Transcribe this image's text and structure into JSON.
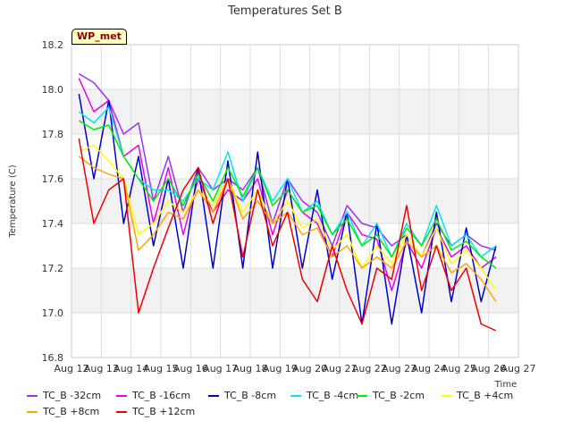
{
  "chart_data": {
    "type": "line",
    "title": "Temperatures Set B",
    "xlabel": "Time",
    "ylabel": "Temperature (C)",
    "badge": "WP_met",
    "x_ticks": [
      "Aug 12",
      "Aug 13",
      "Aug 14",
      "Aug 15",
      "Aug 16",
      "Aug 17",
      "Aug 18",
      "Aug 19",
      "Aug 20",
      "Aug 21",
      "Aug 22",
      "Aug 23",
      "Aug 24",
      "Aug 25",
      "Aug 26",
      "Aug 27"
    ],
    "y_ticks": [
      "16.8",
      "17.0",
      "17.2",
      "17.4",
      "17.6",
      "17.8",
      "18.0",
      "18.2"
    ],
    "xlim": [
      "Aug 12",
      "Aug 27"
    ],
    "ylim": [
      16.8,
      18.2
    ],
    "grid": true,
    "legend_position": "bottom",
    "series": [
      {
        "name": "TC_B -32cm",
        "color": "#9b30ff",
        "x": [
          "Aug 12 06:00",
          "Aug 12 18:00",
          "Aug 13 06:00",
          "Aug 13 18:00",
          "Aug 14 06:00",
          "Aug 14 18:00",
          "Aug 15 06:00",
          "Aug 15 18:00",
          "Aug 16 06:00",
          "Aug 16 18:00",
          "Aug 17 06:00",
          "Aug 17 18:00",
          "Aug 18 06:00",
          "Aug 18 18:00",
          "Aug 19 06:00",
          "Aug 19 18:00",
          "Aug 20 06:00",
          "Aug 20 18:00",
          "Aug 21 06:00",
          "Aug 21 18:00",
          "Aug 22 06:00",
          "Aug 22 18:00",
          "Aug 23 06:00",
          "Aug 23 18:00",
          "Aug 24 06:00",
          "Aug 24 18:00",
          "Aug 25 06:00",
          "Aug 25 18:00",
          "Aug 26 06:00"
        ],
        "y": [
          18.07,
          18.03,
          17.95,
          17.8,
          17.85,
          17.5,
          17.7,
          17.45,
          17.65,
          17.55,
          17.6,
          17.55,
          17.65,
          17.4,
          17.6,
          17.5,
          17.45,
          17.3,
          17.48,
          17.4,
          17.38,
          17.3,
          17.35,
          17.25,
          17.4,
          17.3,
          17.35,
          17.3,
          17.28
        ]
      },
      {
        "name": "TC_B -16cm",
        "color": "#ee00ee",
        "x": [
          "Aug 12 06:00",
          "Aug 12 18:00",
          "Aug 13 06:00",
          "Aug 13 18:00",
          "Aug 14 06:00",
          "Aug 14 18:00",
          "Aug 15 06:00",
          "Aug 15 18:00",
          "Aug 16 06:00",
          "Aug 16 18:00",
          "Aug 17 06:00",
          "Aug 17 18:00",
          "Aug 18 06:00",
          "Aug 18 18:00",
          "Aug 19 06:00",
          "Aug 19 18:00",
          "Aug 20 06:00",
          "Aug 20 18:00",
          "Aug 21 06:00",
          "Aug 21 18:00",
          "Aug 22 06:00",
          "Aug 22 18:00",
          "Aug 23 06:00",
          "Aug 23 18:00",
          "Aug 24 06:00",
          "Aug 24 18:00",
          "Aug 25 06:00",
          "Aug 25 18:00",
          "Aug 26 06:00"
        ],
        "y": [
          18.05,
          17.9,
          17.95,
          17.7,
          17.75,
          17.4,
          17.65,
          17.35,
          17.6,
          17.45,
          17.55,
          17.5,
          17.6,
          17.35,
          17.55,
          17.45,
          17.4,
          17.25,
          17.45,
          17.35,
          17.33,
          17.1,
          17.32,
          17.2,
          17.38,
          17.25,
          17.3,
          17.2,
          17.25
        ]
      },
      {
        "name": "TC_B -8cm",
        "color": "#0000cd",
        "x": [
          "Aug 12 06:00",
          "Aug 12 18:00",
          "Aug 13 06:00",
          "Aug 13 18:00",
          "Aug 14 06:00",
          "Aug 14 18:00",
          "Aug 15 06:00",
          "Aug 15 18:00",
          "Aug 16 06:00",
          "Aug 16 18:00",
          "Aug 17 06:00",
          "Aug 17 18:00",
          "Aug 18 06:00",
          "Aug 18 18:00",
          "Aug 19 06:00",
          "Aug 19 18:00",
          "Aug 20 06:00",
          "Aug 20 18:00",
          "Aug 21 06:00",
          "Aug 21 18:00",
          "Aug 22 06:00",
          "Aug 22 18:00",
          "Aug 23 06:00",
          "Aug 23 18:00",
          "Aug 24 06:00",
          "Aug 24 18:00",
          "Aug 25 06:00",
          "Aug 25 18:00",
          "Aug 26 06:00"
        ],
        "y": [
          17.98,
          17.6,
          17.95,
          17.4,
          17.7,
          17.3,
          17.6,
          17.2,
          17.65,
          17.2,
          17.68,
          17.2,
          17.72,
          17.2,
          17.6,
          17.2,
          17.55,
          17.15,
          17.45,
          16.95,
          17.4,
          16.95,
          17.35,
          17.0,
          17.45,
          17.05,
          17.38,
          17.05,
          17.3
        ]
      },
      {
        "name": "TC_B -4cm",
        "color": "#00e5ee",
        "x": [
          "Aug 12 06:00",
          "Aug 12 18:00",
          "Aug 13 06:00",
          "Aug 13 18:00",
          "Aug 14 06:00",
          "Aug 14 18:00",
          "Aug 15 06:00",
          "Aug 15 18:00",
          "Aug 16 06:00",
          "Aug 16 18:00",
          "Aug 17 06:00",
          "Aug 17 18:00",
          "Aug 18 06:00",
          "Aug 18 18:00",
          "Aug 19 06:00",
          "Aug 19 18:00",
          "Aug 20 06:00",
          "Aug 20 18:00",
          "Aug 21 06:00",
          "Aug 21 18:00",
          "Aug 22 06:00",
          "Aug 22 18:00",
          "Aug 23 06:00",
          "Aug 23 18:00",
          "Aug 24 06:00",
          "Aug 24 18:00",
          "Aug 25 06:00",
          "Aug 25 18:00",
          "Aug 26 06:00"
        ],
        "y": [
          17.9,
          17.85,
          17.92,
          17.7,
          17.6,
          17.55,
          17.55,
          17.5,
          17.6,
          17.55,
          17.72,
          17.5,
          17.65,
          17.5,
          17.6,
          17.45,
          17.5,
          17.35,
          17.45,
          17.3,
          17.4,
          17.25,
          17.4,
          17.3,
          17.48,
          17.3,
          17.35,
          17.25,
          17.3
        ]
      },
      {
        "name": "TC_B -2cm",
        "color": "#00ee00",
        "x": [
          "Aug 12 06:00",
          "Aug 12 18:00",
          "Aug 13 06:00",
          "Aug 13 18:00",
          "Aug 14 06:00",
          "Aug 14 18:00",
          "Aug 15 06:00",
          "Aug 15 18:00",
          "Aug 16 06:00",
          "Aug 16 18:00",
          "Aug 17 06:00",
          "Aug 17 18:00",
          "Aug 18 06:00",
          "Aug 18 18:00",
          "Aug 19 06:00",
          "Aug 19 18:00",
          "Aug 20 06:00",
          "Aug 20 18:00",
          "Aug 21 06:00",
          "Aug 21 18:00",
          "Aug 22 06:00",
          "Aug 22 18:00",
          "Aug 23 06:00",
          "Aug 23 18:00",
          "Aug 24 06:00",
          "Aug 24 18:00",
          "Aug 25 06:00",
          "Aug 25 18:00",
          "Aug 26 06:00"
        ],
        "y": [
          17.86,
          17.82,
          17.84,
          17.7,
          17.6,
          17.5,
          17.6,
          17.48,
          17.62,
          17.5,
          17.65,
          17.52,
          17.65,
          17.48,
          17.55,
          17.45,
          17.48,
          17.35,
          17.42,
          17.3,
          17.35,
          17.25,
          17.38,
          17.3,
          17.42,
          17.28,
          17.32,
          17.25,
          17.2
        ]
      },
      {
        "name": "TC_B +4cm",
        "color": "#ffff00",
        "x": [
          "Aug 12 06:00",
          "Aug 12 18:00",
          "Aug 13 06:00",
          "Aug 13 18:00",
          "Aug 14 06:00",
          "Aug 14 18:00",
          "Aug 15 06:00",
          "Aug 15 18:00",
          "Aug 16 06:00",
          "Aug 16 18:00",
          "Aug 17 06:00",
          "Aug 17 18:00",
          "Aug 18 06:00",
          "Aug 18 18:00",
          "Aug 19 06:00",
          "Aug 19 18:00",
          "Aug 20 06:00",
          "Aug 20 18:00",
          "Aug 21 06:00",
          "Aug 21 18:00",
          "Aug 22 06:00",
          "Aug 22 18:00",
          "Aug 23 06:00",
          "Aug 23 18:00",
          "Aug 24 06:00",
          "Aug 24 18:00",
          "Aug 25 06:00",
          "Aug 25 18:00",
          "Aug 26 06:00"
        ],
        "y": [
          17.72,
          17.75,
          17.68,
          17.6,
          17.35,
          17.4,
          17.5,
          17.45,
          17.55,
          17.48,
          17.6,
          17.45,
          17.55,
          17.4,
          17.5,
          17.38,
          17.42,
          17.28,
          17.35,
          17.2,
          17.3,
          17.22,
          17.35,
          17.25,
          17.38,
          17.22,
          17.28,
          17.2,
          17.1
        ]
      },
      {
        "name": "TC_B +8cm",
        "color": "#ffa500",
        "x": [
          "Aug 12 06:00",
          "Aug 12 18:00",
          "Aug 13 06:00",
          "Aug 13 18:00",
          "Aug 14 06:00",
          "Aug 14 18:00",
          "Aug 15 06:00",
          "Aug 15 18:00",
          "Aug 16 06:00",
          "Aug 16 18:00",
          "Aug 17 06:00",
          "Aug 17 18:00",
          "Aug 18 06:00",
          "Aug 18 18:00",
          "Aug 19 06:00",
          "Aug 19 18:00",
          "Aug 20 06:00",
          "Aug 20 18:00",
          "Aug 21 06:00",
          "Aug 21 18:00",
          "Aug 22 06:00",
          "Aug 22 18:00",
          "Aug 23 06:00",
          "Aug 23 18:00",
          "Aug 24 06:00",
          "Aug 24 18:00",
          "Aug 25 06:00",
          "Aug 25 18:00",
          "Aug 26 06:00"
        ],
        "y": [
          17.7,
          17.65,
          17.62,
          17.6,
          17.28,
          17.35,
          17.45,
          17.42,
          17.55,
          17.45,
          17.6,
          17.42,
          17.5,
          17.4,
          17.45,
          17.35,
          17.38,
          17.25,
          17.3,
          17.2,
          17.25,
          17.2,
          17.32,
          17.25,
          17.3,
          17.18,
          17.22,
          17.15,
          17.05
        ]
      },
      {
        "name": "TC_B +12cm",
        "color": "#ee0000",
        "x": [
          "Aug 12 06:00",
          "Aug 12 18:00",
          "Aug 13 06:00",
          "Aug 13 18:00",
          "Aug 14 06:00",
          "Aug 14 18:00",
          "Aug 15 06:00",
          "Aug 15 18:00",
          "Aug 16 06:00",
          "Aug 16 18:00",
          "Aug 17 06:00",
          "Aug 17 18:00",
          "Aug 18 06:00",
          "Aug 18 18:00",
          "Aug 19 06:00",
          "Aug 19 18:00",
          "Aug 20 06:00",
          "Aug 20 18:00",
          "Aug 21 06:00",
          "Aug 21 18:00",
          "Aug 22 06:00",
          "Aug 22 18:00",
          "Aug 23 06:00",
          "Aug 23 18:00",
          "Aug 24 06:00",
          "Aug 24 18:00",
          "Aug 25 06:00",
          "Aug 25 18:00",
          "Aug 26 06:00"
        ],
        "y": [
          17.78,
          17.4,
          17.55,
          17.6,
          17.0,
          17.2,
          17.38,
          17.55,
          17.65,
          17.4,
          17.6,
          17.25,
          17.55,
          17.3,
          17.45,
          17.15,
          17.05,
          17.3,
          17.1,
          16.95,
          17.2,
          17.15,
          17.48,
          17.1,
          17.3,
          17.1,
          17.2,
          16.95,
          16.92
        ]
      }
    ]
  }
}
